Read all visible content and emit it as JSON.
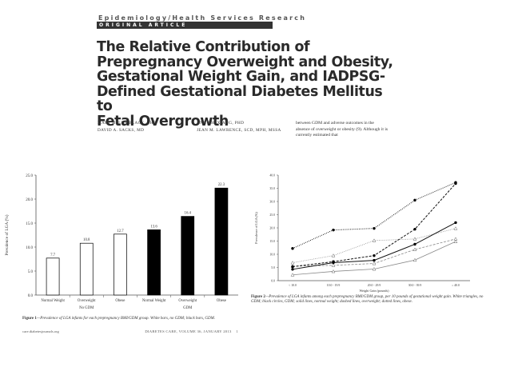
{
  "header": {
    "section": "Epidemiology/Health Services Research",
    "article_type": "ORIGINAL ARTICLE"
  },
  "title_lines": [
    "The Relative Contribution of",
    "Prepregnancy Overweight and Obesity,",
    "Gestational Weight Gain, and IADPSG-",
    "Defined Gestational Diabetes Mellitus to",
    "Fetal Overgrowth"
  ],
  "authors": {
    "left": [
      "MARY HELEN BLACK, PHD",
      "DAVID A. SACKS, MD"
    ],
    "right": [
      "ANNY H. XIANG, PHD",
      "JEAN M. LAWRENCE, SCD, MPH, MSSA"
    ]
  },
  "body_text": "between GDM and adverse outcomes in the absence of overweight or obesity (9). Although it is currently estimated that",
  "figure1": {
    "caption_label": "Figure 1",
    "caption": "—Prevalence of LGA infants for each prepregnancy BMI/GDM group. White bars, no GDM; black bars, GDM.",
    "chart_data": {
      "type": "bar",
      "ylabel": "Prevalence of LGA (%)",
      "ylim": [
        0,
        25
      ],
      "yticks": [
        "0.0",
        "5.0",
        "10.0",
        "15.0",
        "20.0",
        "25.0"
      ],
      "categories": [
        "Normal Weight",
        "Overweight",
        "Obese",
        "Normal Weight",
        "Overweight",
        "Obese"
      ],
      "groups": [
        "No GDM",
        "GDM"
      ],
      "values": [
        7.7,
        10.8,
        12.7,
        13.6,
        16.4,
        22.3
      ],
      "value_labels": [
        "7.7",
        "10.8",
        "12.7",
        "13.6",
        "16.4",
        "22.3"
      ],
      "colors": {
        "no_gdm": "#ffffff",
        "gdm": "#000000"
      }
    }
  },
  "figure2": {
    "caption_label": "Figure 2",
    "caption": "—Prevalence of LGA infants among each prepregnancy BMI/GDM group, per 10 pounds of gestational weight gain. White triangles, no GDM; black circles, GDM; solid lines, normal weight; dashed lines, overweight; dotted lines, obese.",
    "chart_data": {
      "type": "line",
      "xlabel": "Weight Gain (pounds)",
      "ylabel": "Prevalence of LGA (%)",
      "ylim": [
        0,
        40
      ],
      "yticks": [
        "0.0",
        "5.0",
        "10.0",
        "15.0",
        "20.0",
        "25.0",
        "30.0",
        "35.0",
        "40.0"
      ],
      "categories": [
        "< 10.0",
        "10.0 - 19.9",
        "20.0 - 29.9",
        "30.0 - 39.9",
        "≥ 40.0"
      ],
      "series": [
        {
          "values": [
            2.2,
            3.5,
            4.4,
            7.8,
            14.8
          ],
          "style": "solid",
          "marker": "triangle"
        },
        {
          "values": [
            5.5,
            5.8,
            6.5,
            11.8,
            15.8
          ],
          "style": "dashed",
          "marker": "triangle"
        },
        {
          "values": [
            6.8,
            9.5,
            15.2,
            15.8,
            19.8
          ],
          "style": "dotted",
          "marker": "triangle"
        },
        {
          "values": [
            4.3,
            6.8,
            7.7,
            13.8,
            22.0
          ],
          "style": "solid",
          "marker": "circle"
        },
        {
          "values": [
            5.3,
            7.2,
            9.5,
            19.5,
            36.8
          ],
          "style": "dashed",
          "marker": "circle"
        },
        {
          "values": [
            12.2,
            19.2,
            19.8,
            30.5,
            37.2
          ],
          "style": "dotted",
          "marker": "circle"
        }
      ]
    }
  },
  "footer": {
    "left": "care.diabetesjournals.org",
    "right": "DIABETES CARE, VOLUME 36, JANUARY 2013",
    "page": "1"
  }
}
